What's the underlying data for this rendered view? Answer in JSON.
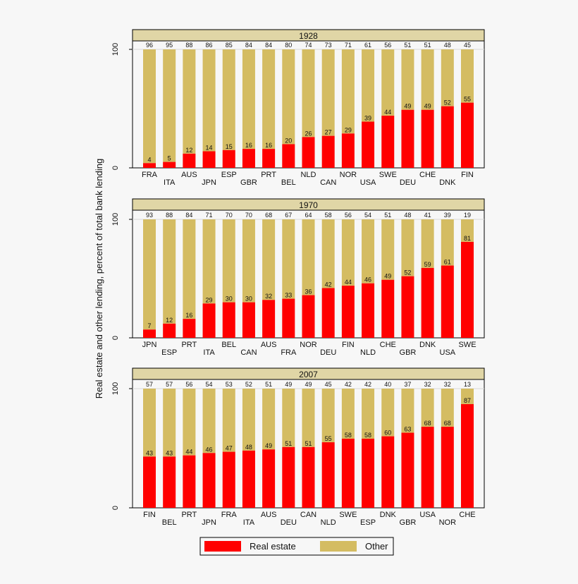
{
  "chart_data": {
    "type": "bar",
    "stacked": true,
    "ylabel": "Real estate and other lending, percent of total bank lending",
    "ylim": [
      0,
      100
    ],
    "yticks": [
      "0",
      "100"
    ],
    "grid": "horizontal line at 100",
    "legend": {
      "placement": "bottom",
      "entries": [
        {
          "name": "Real estate",
          "color": "#ff0000"
        },
        {
          "name": "Other",
          "color": "#d4bc62"
        }
      ]
    },
    "colors": {
      "real_estate": "#ff0000",
      "other": "#d4bc62",
      "header": "#e0d6a6"
    },
    "panels": [
      {
        "title": "1928",
        "categories": [
          "FRA",
          "ITA",
          "AUS",
          "JPN",
          "ESP",
          "GBR",
          "PRT",
          "BEL",
          "NLD",
          "CAN",
          "NOR",
          "USA",
          "SWE",
          "DEU",
          "CHE",
          "DNK",
          "FIN"
        ],
        "series": [
          {
            "name": "Real estate",
            "values": [
              4,
              5,
              12,
              14,
              15,
              16,
              16,
              20,
              26,
              27,
              29,
              39,
              44,
              49,
              49,
              52,
              55
            ]
          },
          {
            "name": "Other",
            "values": [
              96,
              95,
              88,
              86,
              85,
              84,
              84,
              80,
              74,
              73,
              71,
              61,
              56,
              51,
              51,
              48,
              45
            ]
          }
        ]
      },
      {
        "title": "1970",
        "categories": [
          "JPN",
          "ESP",
          "PRT",
          "ITA",
          "BEL",
          "CAN",
          "AUS",
          "FRA",
          "NOR",
          "DEU",
          "FIN",
          "NLD",
          "CHE",
          "GBR",
          "DNK",
          "USA",
          "SWE"
        ],
        "series": [
          {
            "name": "Real estate",
            "values": [
              7,
              12,
              16,
              29,
              30,
              30,
              32,
              33,
              36,
              42,
              44,
              46,
              49,
              52,
              59,
              61,
              81
            ]
          },
          {
            "name": "Other",
            "values": [
              93,
              88,
              84,
              71,
              70,
              70,
              68,
              67,
              64,
              58,
              56,
              54,
              51,
              48,
              41,
              39,
              19
            ]
          }
        ]
      },
      {
        "title": "2007",
        "categories": [
          "FIN",
          "BEL",
          "PRT",
          "JPN",
          "FRA",
          "ITA",
          "AUS",
          "DEU",
          "CAN",
          "NLD",
          "SWE",
          "ESP",
          "DNK",
          "GBR",
          "USA",
          "NOR",
          "CHE"
        ],
        "series": [
          {
            "name": "Real estate",
            "values": [
              43,
              43,
              44,
              46,
              47,
              48,
              49,
              51,
              51,
              55,
              58,
              58,
              60,
              63,
              68,
              68,
              87
            ]
          },
          {
            "name": "Other",
            "values": [
              57,
              57,
              56,
              54,
              53,
              52,
              51,
              49,
              49,
              45,
              42,
              42,
              40,
              37,
              32,
              32,
              13
            ]
          }
        ]
      }
    ]
  }
}
